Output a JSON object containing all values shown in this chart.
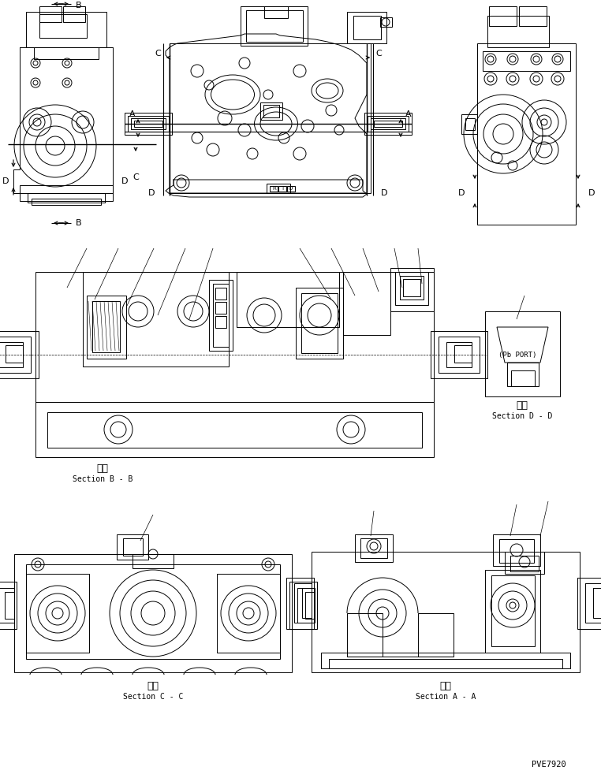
{
  "bg_color": "#ffffff",
  "line_color": "#000000",
  "fig_width": 7.62,
  "fig_height": 9.82,
  "dpi": 100,
  "labels": {
    "section_bb_kanji": "断面",
    "section_bb": "Section B - B",
    "section_cc_kanji": "断面",
    "section_cc": "Section C - C",
    "section_aa_kanji": "断面",
    "section_aa": "Section A - A",
    "section_dd_kanji": "断面",
    "section_dd": "Section D - D",
    "pb_port_left": "(Pb PORT)",
    "pb_port_right": "(Pb PORT)",
    "part_number": "PVE7920",
    "B": "B",
    "A": "A",
    "C": "C",
    "D": "D"
  },
  "lw": 0.7
}
